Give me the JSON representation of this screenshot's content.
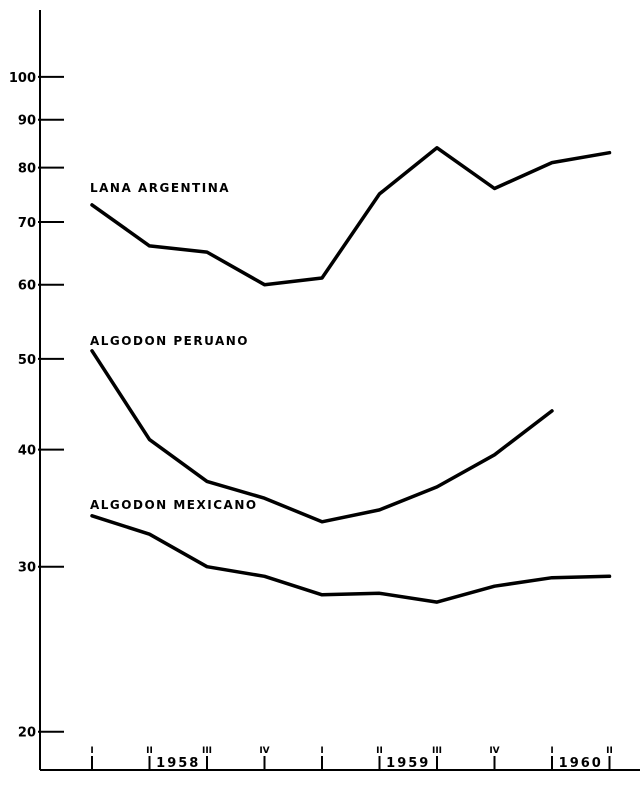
{
  "chart_data": {
    "type": "line",
    "title": "",
    "xlabel": "",
    "ylabel": "",
    "y_scale": "log",
    "ylim": [
      19.5,
      115
    ],
    "y_ticks": [
      20,
      30,
      40,
      50,
      60,
      70,
      80,
      90,
      100
    ],
    "grid": false,
    "x_quarters": [
      "I",
      "II",
      "III",
      "IV",
      "I",
      "II",
      "III",
      "IV",
      "I",
      "II"
    ],
    "years": [
      {
        "label": "1958",
        "center_index": 1.5
      },
      {
        "label": "1959",
        "center_index": 5.5
      },
      {
        "label": "1960",
        "center_index": 8.5
      }
    ],
    "series": [
      {
        "name": "LANA ARGENTINA",
        "values": [
          73,
          66,
          65,
          60,
          61,
          75,
          84,
          76,
          81,
          83
        ]
      },
      {
        "name": "ALGODON PERUANO",
        "values": [
          51,
          41,
          37,
          35.5,
          33.5,
          34.5,
          36.5,
          39.5,
          44,
          null
        ]
      },
      {
        "name": "ALGODON MEXICANO",
        "values": [
          34,
          32.5,
          30,
          29.3,
          28,
          28.1,
          27.5,
          28.6,
          29.2,
          29.3
        ]
      }
    ]
  }
}
